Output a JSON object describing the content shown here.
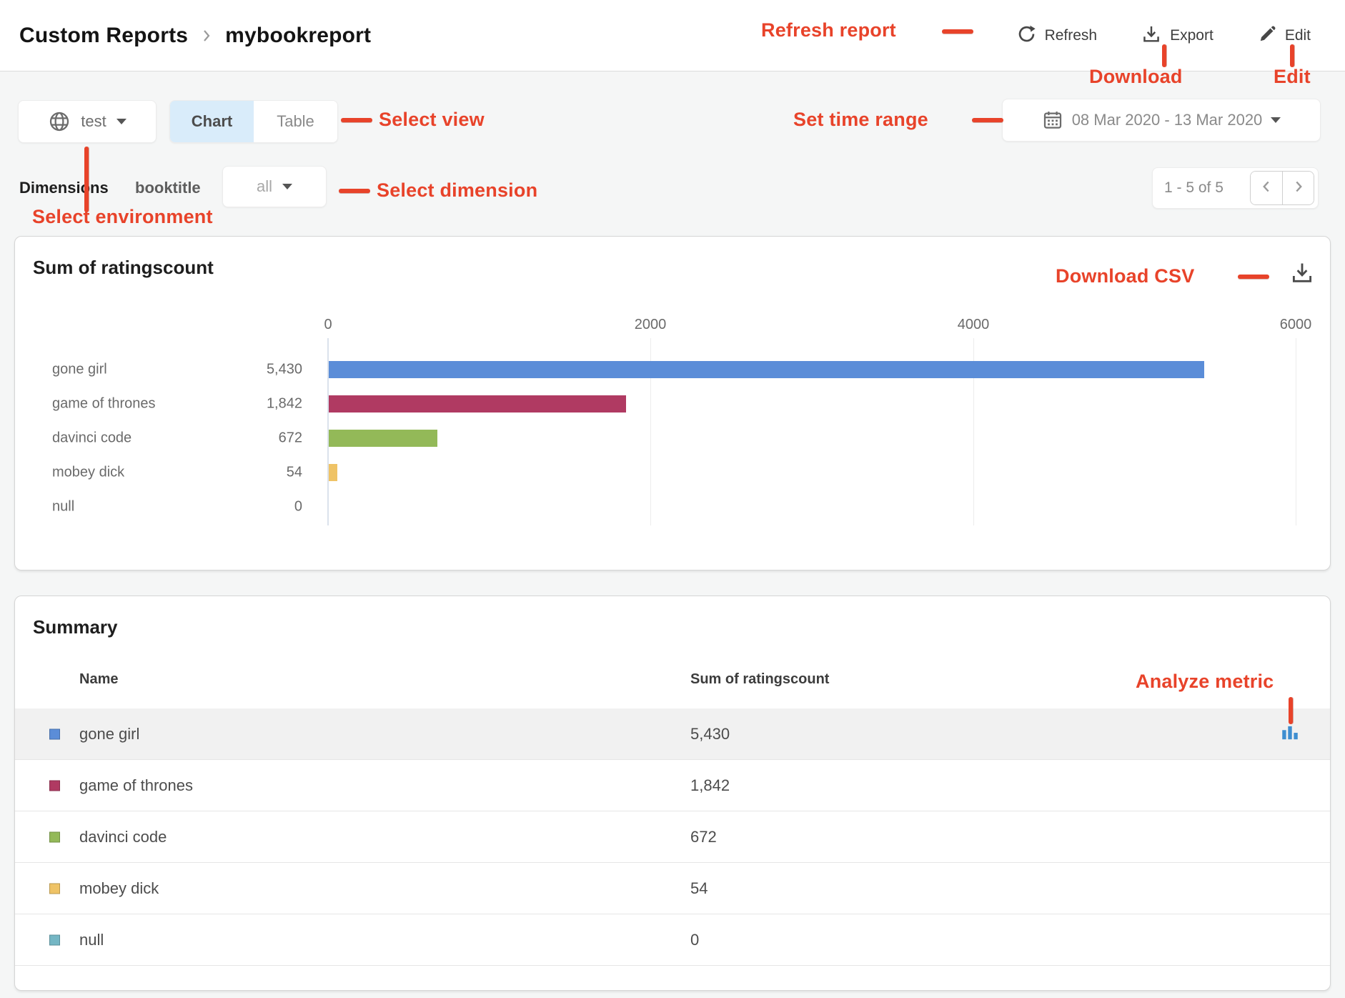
{
  "header": {
    "breadcrumb": {
      "parent": "Custom Reports",
      "current": "mybookreport"
    },
    "actions": {
      "refresh": "Refresh",
      "export": "Export",
      "edit": "Edit"
    }
  },
  "toolbar": {
    "environment": "test",
    "views": {
      "chart": "Chart",
      "table": "Table",
      "selected": "Chart"
    },
    "date_range": "08 Mar 2020 - 13 Mar 2020"
  },
  "dimensions": {
    "label": "Dimensions",
    "name": "booktitle",
    "value": "all"
  },
  "pagination": {
    "range": "1 - 5 of 5"
  },
  "chart_card": {
    "title": "Sum of ratingscount"
  },
  "chart_data": {
    "type": "bar",
    "orientation": "horizontal",
    "title": "Sum of ratingscount",
    "categories": [
      "gone girl",
      "game of thrones",
      "davinci code",
      "mobey dick",
      "null"
    ],
    "values": [
      5430,
      1842,
      672,
      54,
      0
    ],
    "value_labels": [
      "5,430",
      "1,842",
      "672",
      "54",
      "0"
    ],
    "bar_colors": [
      "#5b8dd8",
      "#b03a62",
      "#93b958",
      "#efc366",
      "#74b6c4"
    ],
    "xlim": [
      0,
      6000
    ],
    "x_ticks": [
      "0",
      "2000",
      "4000",
      "6000"
    ],
    "grid": true,
    "legend": "none"
  },
  "summary": {
    "title": "Summary",
    "columns": {
      "name": "Name",
      "value": "Sum of ratingscount"
    },
    "rows": [
      {
        "name": "gone girl",
        "value": "5,430",
        "color": "#5b8dd8",
        "highlighted": true
      },
      {
        "name": "game of thrones",
        "value": "1,842",
        "color": "#b03a62",
        "highlighted": false
      },
      {
        "name": "davinci code",
        "value": "672",
        "color": "#93b958",
        "highlighted": false
      },
      {
        "name": "mobey dick",
        "value": "54",
        "color": "#efc366",
        "highlighted": false
      },
      {
        "name": "null",
        "value": "0",
        "color": "#74b6c4",
        "highlighted": false
      }
    ]
  },
  "annotations": {
    "refresh_report": "Refresh report",
    "download": "Download",
    "edit": "Edit",
    "select_view": "Select view",
    "set_time_range": "Set time range",
    "select_dimension": "Select dimension",
    "select_environment": "Select environment",
    "download_csv": "Download CSV",
    "analyze_metric": "Analyze metric",
    "color": "#e8432a"
  }
}
